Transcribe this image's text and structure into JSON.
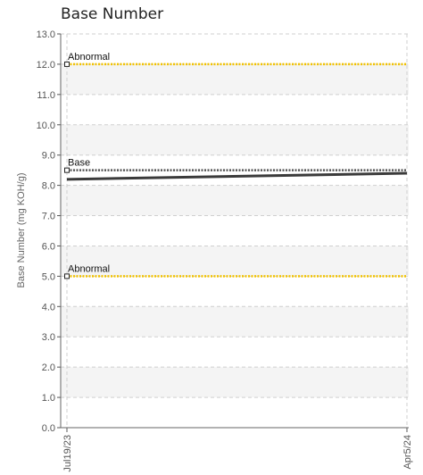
{
  "chart_data": {
    "type": "line",
    "title": "Base Number",
    "ylabel": "Base Number (mg KOH/g)",
    "xlabel": "",
    "ylim": [
      0,
      13
    ],
    "y_ticks": [
      "0.0",
      "1.0",
      "2.0",
      "3.0",
      "4.0",
      "5.0",
      "6.0",
      "7.0",
      "8.0",
      "9.0",
      "10.0",
      "11.0",
      "12.0",
      "13.0"
    ],
    "x_ticks": [
      "Jul19/23",
      "Apr5/24"
    ],
    "grid": true,
    "reference_lines": [
      {
        "label": "Abnormal",
        "value": 12.0,
        "color": "#f2c200",
        "style": "dotted"
      },
      {
        "label": "Base",
        "value": 8.5,
        "color": "#555555",
        "style": "dotted"
      },
      {
        "label": "Abnormal",
        "value": 5.0,
        "color": "#f2c200",
        "style": "dotted"
      }
    ],
    "series": [
      {
        "x": [
          "Jul19/23",
          "Apr5/24"
        ],
        "values": [
          8.2,
          8.4
        ],
        "color": "#3a3a3a"
      }
    ]
  }
}
